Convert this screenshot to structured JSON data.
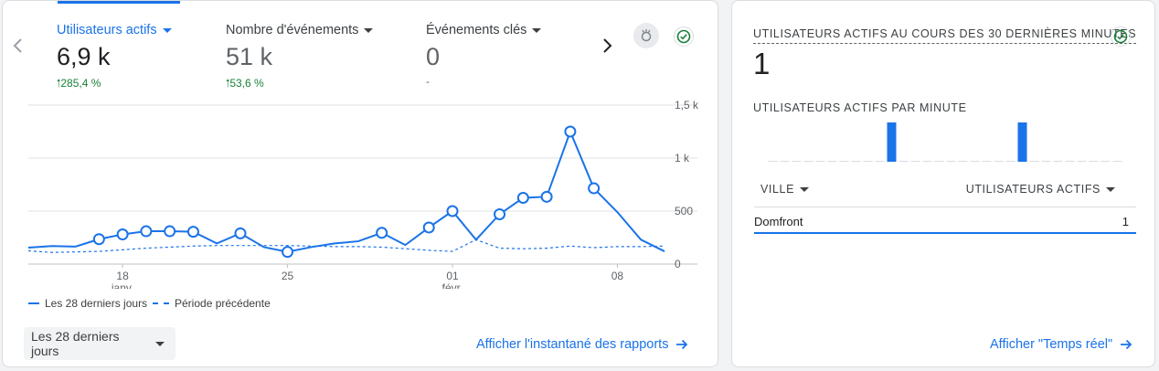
{
  "overview": {
    "metrics": [
      {
        "label": "Utilisateurs actifs",
        "value": "6,9 k",
        "delta": "285,4 %",
        "active": true
      },
      {
        "label": "Nombre d'événements",
        "value": "51 k",
        "delta": "53,6 %"
      },
      {
        "label": "Événements clés",
        "value": "0",
        "delta": "-"
      }
    ],
    "legend": {
      "current": "Les 28 derniers jours",
      "previous": "Période précédente"
    },
    "date_range": "Les 28 derniers jours",
    "snapshot_link": "Afficher l'instantané des rapports"
  },
  "colors": {
    "accent": "#1a73e8",
    "positive": "#188038",
    "previous_line": "#1a73e8",
    "grid": "#e0e0e0"
  },
  "chart_data": {
    "type": "line",
    "y_ticks": [
      "1,5 k",
      "1 k",
      "500",
      "0"
    ],
    "ylim": [
      0,
      1500
    ],
    "x_tick_labels": [
      {
        "day": 4,
        "line1": "18",
        "line2": "janv."
      },
      {
        "day": 11,
        "line1": "25",
        "line2": ""
      },
      {
        "day": 18,
        "line1": "01",
        "line2": "févr."
      },
      {
        "day": 25,
        "line1": "08",
        "line2": ""
      }
    ],
    "series": [
      {
        "name": "Les 28 derniers jours",
        "style": "solid",
        "values": [
          155,
          170,
          165,
          235,
          280,
          310,
          310,
          305,
          195,
          290,
          160,
          115,
          160,
          195,
          215,
          295,
          180,
          345,
          500,
          230,
          470,
          625,
          635,
          1250,
          715,
          490,
          230,
          120
        ],
        "markers": [
          false,
          false,
          false,
          true,
          true,
          true,
          true,
          true,
          false,
          true,
          false,
          true,
          false,
          false,
          false,
          true,
          false,
          true,
          true,
          false,
          true,
          true,
          true,
          true,
          true,
          false,
          false,
          false
        ]
      },
      {
        "name": "Période précédente",
        "style": "dashed",
        "values": [
          125,
          110,
          115,
          120,
          135,
          150,
          160,
          170,
          175,
          175,
          175,
          175,
          170,
          165,
          165,
          160,
          145,
          130,
          120,
          230,
          150,
          145,
          150,
          170,
          155,
          165,
          165,
          170
        ]
      }
    ]
  },
  "realtime": {
    "title": "UTILISATEURS ACTIFS AU COURS DES 30 DERNIÈRES MINUTES",
    "count": "1",
    "per_minute_title": "UTILISATEURS ACTIFS PAR MINUTE",
    "per_minute": [
      0,
      0,
      0,
      0,
      0,
      0,
      0,
      0,
      0,
      0,
      1,
      0,
      0,
      0,
      0,
      0,
      0,
      0,
      0,
      0,
      0,
      1,
      0,
      0,
      0,
      0,
      0,
      0,
      0,
      0
    ],
    "table": {
      "col_city": "VILLE",
      "col_users": "UTILISATEURS ACTIFS",
      "rows": [
        {
          "city": "Domfront",
          "users": "1"
        }
      ]
    },
    "realtime_link": "Afficher \"Temps réel\""
  }
}
